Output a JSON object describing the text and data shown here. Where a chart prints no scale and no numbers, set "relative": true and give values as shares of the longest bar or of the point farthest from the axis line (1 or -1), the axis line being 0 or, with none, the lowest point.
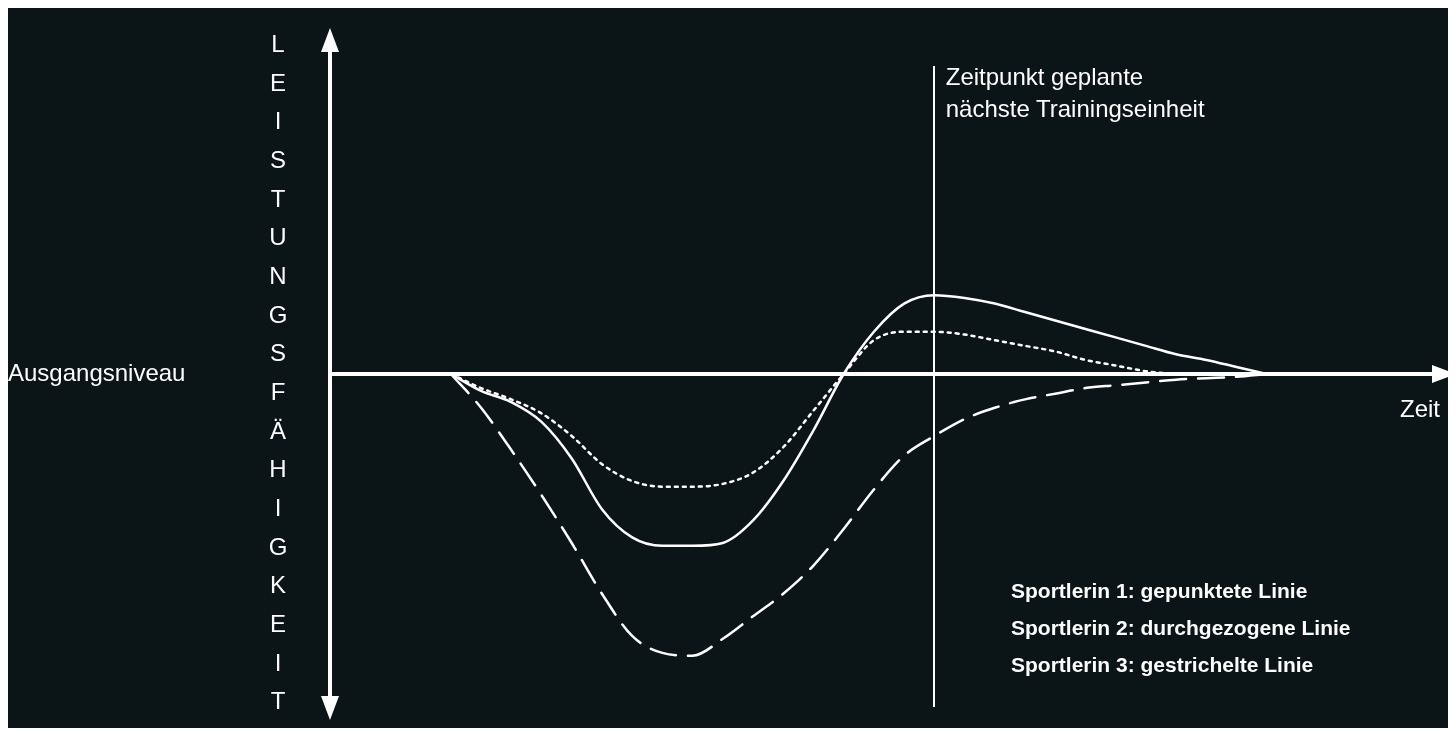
{
  "chart_data": {
    "type": "line",
    "relative": true,
    "ylabel": "LEISTUNGSFÄHIGKEIT",
    "xlabel": "Zeit",
    "tick_labels": false,
    "legend": false,
    "marker": "none",
    "categories": [
      null,
      null,
      null,
      null,
      null,
      null,
      null,
      null,
      null,
      null,
      null,
      null,
      null,
      null,
      null,
      null,
      null,
      null,
      null,
      null,
      null,
      null,
      null,
      null,
      null,
      null,
      null,
      null,
      null,
      null,
      null,
      null,
      null,
      null,
      null,
      null,
      null,
      null
    ],
    "series": [
      {
        "color": "#ffffff",
        "line_style": "dotted",
        "values": [
          null,
          null,
          null,
          null,
          0,
          -0.05,
          -0.09,
          -0.14,
          -0.22,
          -0.32,
          -0.38,
          -0.4,
          -0.4,
          -0.39,
          -0.35,
          -0.26,
          -0.13,
          0,
          0.12,
          0.15,
          0.15,
          0.14,
          0.12,
          0.1,
          0.08,
          0.05,
          0.03,
          0.01,
          0,
          null,
          null,
          null,
          null,
          null,
          null,
          null,
          null,
          null
        ]
      },
      {
        "color": "#ffffff",
        "line_style": "solid",
        "values": [
          null,
          null,
          null,
          null,
          0,
          -0.06,
          -0.1,
          -0.17,
          -0.3,
          -0.48,
          -0.58,
          -0.61,
          -0.61,
          -0.6,
          -0.52,
          -0.38,
          -0.2,
          0,
          0.15,
          0.25,
          0.28,
          0.27,
          0.25,
          0.22,
          0.19,
          0.16,
          0.13,
          0.1,
          0.07,
          0.05,
          0.025,
          0,
          null,
          null,
          null,
          null,
          null,
          null
        ]
      },
      {
        "color": "#ffffff",
        "line_style": "dashed",
        "values": [
          null,
          null,
          null,
          null,
          0,
          -0.12,
          -0.27,
          -0.43,
          -0.6,
          -0.78,
          -0.93,
          -0.99,
          -1,
          -0.94,
          -0.86,
          -0.78,
          -0.68,
          -0.55,
          -0.41,
          -0.29,
          -0.22,
          -0.16,
          -0.12,
          -0.09,
          -0.07,
          -0.05,
          -0.04,
          -0.03,
          -0.02,
          -0.015,
          -0.01,
          0,
          null,
          null,
          null,
          null,
          null,
          null
        ]
      }
    ],
    "annotations": [
      "Ausgangsniveau",
      "Zeitpunkt geplante\nnächste Trainingseinheit",
      "Sportlerin 1: gepunktete Linie",
      "Sportlerin 2: durchgezogene Linie",
      "Sportlerin 3: gestrichelte Linie"
    ]
  }
}
